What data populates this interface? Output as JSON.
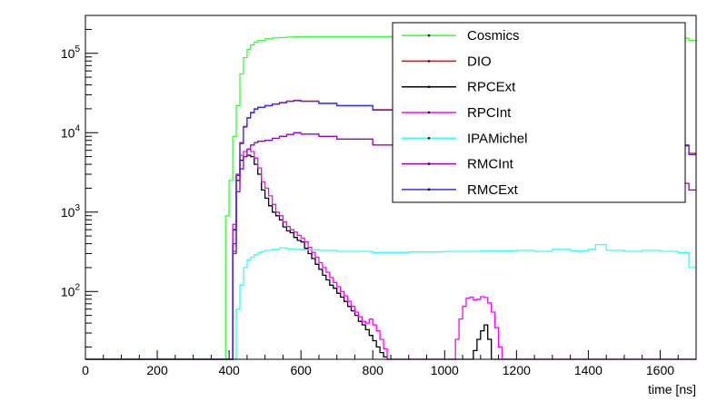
{
  "chart_data": {
    "type": "line",
    "style": "step-histogram",
    "xlabel": "time [ns]",
    "ylabel": "",
    "xlim": [
      0,
      1700
    ],
    "ylim": [
      14,
      300000
    ],
    "yscale": "log",
    "grid": false,
    "legend_position": "top-right",
    "x_ticks": [
      0,
      200,
      400,
      600,
      800,
      1000,
      1200,
      1400,
      1600
    ],
    "x_tick_labels": [
      "0",
      "200",
      "400",
      "600",
      "800",
      "1000",
      "1200",
      "1400",
      "1600"
    ],
    "y_ticks": [
      {
        "value": 100,
        "base": "10",
        "exp": "2"
      },
      {
        "value": 1000,
        "base": "10",
        "exp": "3"
      },
      {
        "value": 10000,
        "base": "10",
        "exp": "4"
      },
      {
        "value": 100000,
        "base": "10",
        "exp": "5"
      }
    ],
    "series": [
      {
        "name": "Cosmics",
        "color": "#33ff33",
        "x": [
          0,
          380,
          390,
          400,
          410,
          420,
          430,
          440,
          450,
          460,
          470,
          480,
          500,
          520,
          540,
          560,
          580,
          600,
          650,
          700,
          1400,
          1600,
          1650,
          1680,
          1700
        ],
        "y": [
          14,
          14,
          900,
          2500,
          9000,
          22000,
          55000,
          88000,
          112000,
          128000,
          138000,
          145000,
          152000,
          156000,
          158000,
          160000,
          161000,
          162000,
          162000,
          162000,
          162000,
          162000,
          155000,
          145000,
          145000
        ]
      },
      {
        "name": "DIO",
        "color": "#ff0000",
        "x": [
          0,
          400,
          410,
          420,
          430,
          440,
          450,
          460,
          470,
          480,
          500,
          520,
          540,
          560,
          580,
          600,
          650,
          700,
          800,
          900,
          1000,
          1100,
          1200,
          1300,
          1400,
          1500,
          1600,
          1680,
          1700
        ],
        "y": [
          14,
          14,
          300,
          3000,
          7500,
          12000,
          15500,
          18000,
          20000,
          21000,
          22000,
          23000,
          24000,
          25000,
          25500,
          25000,
          23500,
          22000,
          19500,
          17000,
          15000,
          13000,
          11500,
          10000,
          9000,
          8000,
          7000,
          5500,
          5500
        ]
      },
      {
        "name": "RPCExt",
        "color": "#000000",
        "x": [
          0,
          400,
          410,
          420,
          430,
          440,
          450,
          460,
          470,
          480,
          490,
          500,
          510,
          520,
          530,
          540,
          550,
          560,
          570,
          580,
          590,
          600,
          610,
          620,
          630,
          640,
          650,
          660,
          670,
          680,
          690,
          700,
          710,
          720,
          730,
          740,
          750,
          760,
          770,
          780,
          790,
          800,
          810,
          820,
          830,
          840,
          850,
          1080,
          1090,
          1100,
          1110,
          1120,
          1130,
          1700
        ],
        "y": [
          14,
          14,
          600,
          2500,
          4500,
          5000,
          5200,
          5000,
          4000,
          3000,
          1900,
          1500,
          1200,
          1000,
          900,
          800,
          650,
          580,
          550,
          480,
          440,
          420,
          350,
          300,
          260,
          220,
          190,
          160,
          140,
          120,
          110,
          95,
          85,
          75,
          65,
          57,
          50,
          42,
          38,
          33,
          28,
          24,
          20,
          17,
          15,
          14,
          14,
          18,
          25,
          32,
          38,
          25,
          14,
          14
        ]
      },
      {
        "name": "RPCInt",
        "color": "#ff00ff",
        "x": [
          0,
          400,
          410,
          420,
          430,
          440,
          450,
          460,
          470,
          480,
          490,
          500,
          510,
          520,
          530,
          540,
          550,
          560,
          570,
          580,
          590,
          600,
          610,
          620,
          630,
          640,
          650,
          660,
          670,
          680,
          690,
          700,
          710,
          720,
          730,
          740,
          750,
          760,
          770,
          780,
          790,
          800,
          810,
          820,
          830,
          840,
          850,
          1030,
          1040,
          1050,
          1060,
          1070,
          1080,
          1090,
          1100,
          1110,
          1120,
          1130,
          1140,
          1150,
          1160,
          1170,
          1700
        ],
        "y": [
          14,
          14,
          700,
          3000,
          5200,
          5800,
          6200,
          5800,
          4800,
          3600,
          2400,
          2000,
          1600,
          1250,
          1000,
          900,
          750,
          660,
          600,
          560,
          510,
          470,
          420,
          360,
          310,
          270,
          230,
          200,
          175,
          150,
          130,
          115,
          100,
          88,
          75,
          65,
          55,
          48,
          42,
          40,
          45,
          38,
          32,
          25,
          19,
          14,
          14,
          25,
          45,
          65,
          82,
          85,
          78,
          80,
          86,
          84,
          72,
          55,
          35,
          20,
          14,
          14,
          14
        ]
      },
      {
        "name": "IPAMichel",
        "color": "#33ffff",
        "x": [
          0,
          410,
          420,
          430,
          440,
          450,
          460,
          470,
          480,
          490,
          500,
          520,
          540,
          560,
          580,
          600,
          650,
          700,
          800,
          900,
          1000,
          1100,
          1200,
          1250,
          1300,
          1350,
          1400,
          1420,
          1450,
          1500,
          1550,
          1600,
          1650,
          1680,
          1700
        ],
        "y": [
          14,
          14,
          60,
          120,
          200,
          250,
          270,
          290,
          310,
          320,
          330,
          340,
          355,
          345,
          340,
          335,
          330,
          320,
          310,
          315,
          320,
          325,
          330,
          320,
          340,
          325,
          340,
          390,
          330,
          320,
          330,
          320,
          310,
          200,
          200
        ]
      },
      {
        "name": "RMCInt",
        "color": "#9900cc",
        "x": [
          0,
          400,
          410,
          420,
          430,
          440,
          450,
          460,
          470,
          480,
          500,
          520,
          540,
          560,
          580,
          600,
          650,
          700,
          800,
          900,
          1000,
          1100,
          1200,
          1300,
          1400,
          1500,
          1600,
          1680,
          1700
        ],
        "y": [
          14,
          14,
          400,
          1800,
          3500,
          5000,
          6200,
          7000,
          7500,
          7800,
          8000,
          8500,
          9000,
          9500,
          10000,
          9600,
          9000,
          8300,
          7000,
          6000,
          5100,
          4400,
          3900,
          3400,
          3000,
          2600,
          2300,
          1900,
          1900
        ]
      },
      {
        "name": "RMCExt",
        "color": "#3333ff",
        "x": [
          0,
          400,
          410,
          420,
          430,
          440,
          450,
          460,
          470,
          480,
          500,
          520,
          540,
          560,
          580,
          600,
          650,
          700,
          800,
          900,
          1000,
          1100,
          1200,
          1300,
          1400,
          1500,
          1600,
          1680,
          1700
        ],
        "y": [
          14,
          14,
          320,
          2900,
          7300,
          11800,
          15300,
          17800,
          19800,
          20800,
          21800,
          22800,
          23800,
          24800,
          25300,
          24800,
          23300,
          21800,
          19300,
          16800,
          14800,
          12800,
          11300,
          9800,
          8800,
          7800,
          6800,
          5300,
          5300
        ]
      }
    ]
  }
}
